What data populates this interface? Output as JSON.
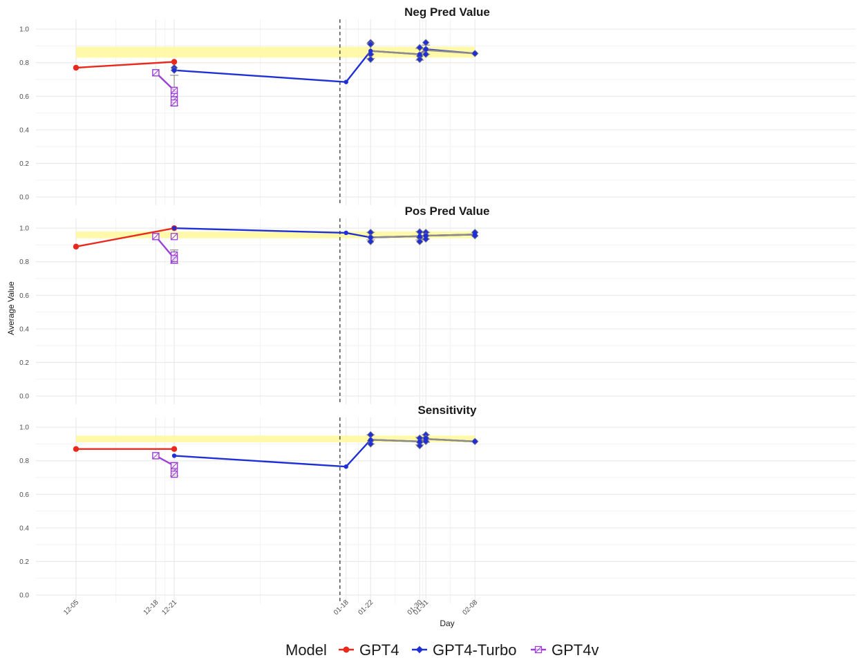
{
  "chart_data": {
    "type": "line",
    "xlabel": "Day",
    "ylabel": "Average Value",
    "x": [
      "12-05",
      "12-18",
      "12-21",
      "01-18",
      "01-22",
      "01-30",
      "01-31",
      "02-08"
    ],
    "ylim": [
      0,
      1.05
    ],
    "y_ticks": [
      "0.0",
      "0.2",
      "0.4",
      "0.6",
      "0.8",
      "1.0"
    ],
    "vline_x": "01-17",
    "legend": {
      "title": "Model",
      "position": "bottom",
      "entries": [
        "GPT4",
        "GPT4-Turbo",
        "GPT4v"
      ]
    },
    "colors": {
      "GPT4": "#e8291c",
      "GPT4-Turbo": "#1f2fd6",
      "GPT4v": "#9b3fd4",
      "mean_line": "#8c8c8c",
      "band": "#fff89a"
    },
    "panels": [
      {
        "title": "Neg Pred Value",
        "band": [
          0.83,
          0.895
        ],
        "series": [
          {
            "name": "GPT4",
            "x": [
              "12-05",
              "12-21"
            ],
            "y": [
              0.77,
              0.805
            ]
          },
          {
            "name": "GPT4-Turbo",
            "x": [
              "12-21",
              "01-18",
              "01-22",
              "01-30",
              "01-31",
              "02-08"
            ],
            "y": [
              0.755,
              0.685,
              0.87,
              0.85,
              0.88,
              0.855
            ]
          },
          {
            "name": "GPT4v",
            "x": [
              "12-18",
              "12-21"
            ],
            "y": [
              0.74,
              0.635
            ]
          }
        ],
        "points": [
          {
            "series": "GPT4-Turbo",
            "x": "12-21",
            "y": [
              0.77,
              0.755
            ]
          },
          {
            "series": "GPT4-Turbo",
            "x": "01-22",
            "y": [
              0.92,
              0.91,
              0.85,
              0.82
            ]
          },
          {
            "series": "GPT4-Turbo",
            "x": "01-30",
            "y": [
              0.89,
              0.84,
              0.82
            ]
          },
          {
            "series": "GPT4-Turbo",
            "x": "01-31",
            "y": [
              0.92,
              0.88,
              0.85
            ]
          },
          {
            "series": "GPT4-Turbo",
            "x": "02-08",
            "y": [
              0.855
            ]
          },
          {
            "series": "GPT4v",
            "x": "12-18",
            "y": [
              0.74
            ]
          },
          {
            "series": "GPT4v",
            "x": "12-21",
            "y": [
              0.61,
              0.58,
              0.56
            ]
          }
        ],
        "mean_line": {
          "x": [
            "01-22",
            "01-30",
            "01-31",
            "02-08"
          ],
          "y": [
            0.87,
            0.85,
            0.875,
            0.855
          ]
        },
        "errorbars": [
          {
            "x": "12-21",
            "low": 0.545,
            "high": 0.725
          },
          {
            "x": "01-22",
            "low": 0.825,
            "high": 0.915
          },
          {
            "x": "01-30",
            "low": 0.815,
            "high": 0.885
          },
          {
            "x": "01-31",
            "low": 0.85,
            "high": 0.905
          }
        ]
      },
      {
        "title": "Pos Pred Value",
        "band": [
          0.94,
          0.98
        ],
        "series": [
          {
            "name": "GPT4",
            "x": [
              "12-05",
              "12-21"
            ],
            "y": [
              0.89,
              1.0
            ]
          },
          {
            "name": "GPT4-Turbo",
            "x": [
              "12-21",
              "01-18",
              "01-22",
              "01-30",
              "01-31",
              "02-08"
            ],
            "y": [
              1.0,
              0.972,
              0.945,
              0.952,
              0.955,
              0.962
            ]
          },
          {
            "name": "GPT4v",
            "x": [
              "12-18",
              "12-21"
            ],
            "y": [
              0.95,
              0.82
            ]
          }
        ],
        "points": [
          {
            "series": "GPT4-Turbo",
            "x": "01-22",
            "y": [
              0.975,
              0.945,
              0.92
            ]
          },
          {
            "series": "GPT4-Turbo",
            "x": "01-30",
            "y": [
              0.978,
              0.945,
              0.92
            ]
          },
          {
            "series": "GPT4-Turbo",
            "x": "01-31",
            "y": [
              0.975,
              0.955,
              0.935
            ]
          },
          {
            "series": "GPT4-Turbo",
            "x": "02-08",
            "y": [
              0.975,
              0.955
            ]
          },
          {
            "series": "GPT4v",
            "x": "12-18",
            "y": [
              0.95
            ]
          },
          {
            "series": "GPT4v",
            "x": "12-21",
            "y": [
              0.95,
              0.84,
              0.81
            ]
          }
        ],
        "mean_line": {
          "x": [
            "01-22",
            "01-30",
            "01-31",
            "02-08"
          ],
          "y": [
            0.945,
            0.952,
            0.955,
            0.962
          ]
        },
        "errorbars": [
          {
            "x": "12-21",
            "low": 0.79,
            "high": 0.87
          },
          {
            "x": "01-22",
            "low": 0.93,
            "high": 0.975
          },
          {
            "x": "01-30",
            "low": 0.93,
            "high": 0.98
          },
          {
            "x": "01-31",
            "low": 0.935,
            "high": 0.975
          }
        ]
      },
      {
        "title": "Sensitivity",
        "band": [
          0.91,
          0.95
        ],
        "series": [
          {
            "name": "GPT4",
            "x": [
              "12-05",
              "12-21"
            ],
            "y": [
              0.87,
              0.87
            ]
          },
          {
            "name": "GPT4-Turbo",
            "x": [
              "12-21",
              "01-18",
              "01-22",
              "01-30",
              "01-31",
              "02-08"
            ],
            "y": [
              0.83,
              0.765,
              0.925,
              0.915,
              0.93,
              0.915
            ]
          },
          {
            "name": "GPT4v",
            "x": [
              "12-18",
              "12-21"
            ],
            "y": [
              0.83,
              0.77
            ]
          }
        ],
        "points": [
          {
            "series": "GPT4-Turbo",
            "x": "01-22",
            "y": [
              0.955,
              0.92,
              0.9
            ]
          },
          {
            "series": "GPT4-Turbo",
            "x": "01-30",
            "y": [
              0.935,
              0.91,
              0.89
            ]
          },
          {
            "series": "GPT4-Turbo",
            "x": "01-31",
            "y": [
              0.955,
              0.935,
              0.915
            ]
          },
          {
            "series": "GPT4-Turbo",
            "x": "02-08",
            "y": [
              0.915
            ]
          },
          {
            "series": "GPT4v",
            "x": "12-18",
            "y": [
              0.83
            ]
          },
          {
            "series": "GPT4v",
            "x": "12-21",
            "y": [
              0.77,
              0.74,
              0.72
            ]
          }
        ],
        "mean_line": {
          "x": [
            "01-22",
            "01-30",
            "01-31",
            "02-08"
          ],
          "y": [
            0.925,
            0.915,
            0.93,
            0.915
          ]
        },
        "errorbars": [
          {
            "x": "12-21",
            "low": 0.71,
            "high": 0.79
          },
          {
            "x": "01-22",
            "low": 0.9,
            "high": 0.955
          },
          {
            "x": "01-30",
            "low": 0.895,
            "high": 0.94
          },
          {
            "x": "01-31",
            "low": 0.91,
            "high": 0.955
          }
        ]
      }
    ]
  }
}
